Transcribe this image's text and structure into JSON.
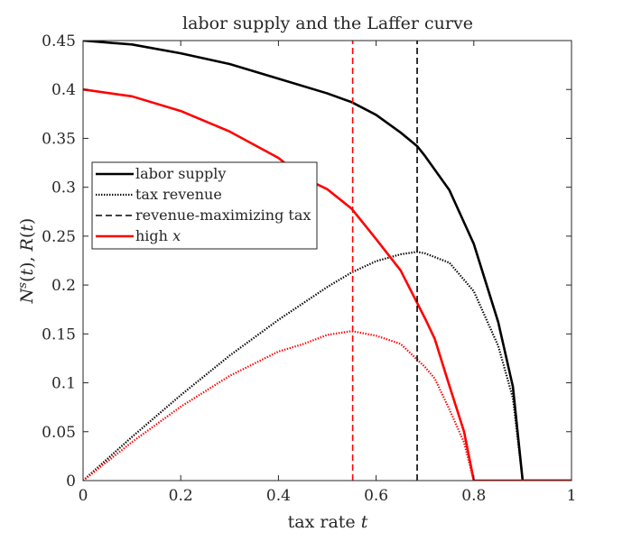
{
  "chart_data": {
    "type": "line",
    "title": "labor supply and the Laffer curve",
    "xlabel": "tax rate t",
    "ylabel": "N^s(t), R(t)",
    "xlim": [
      0,
      1
    ],
    "ylim": [
      0,
      0.45
    ],
    "xticks": [
      "0",
      "0.2",
      "0.4",
      "0.6",
      "0.8",
      "1"
    ],
    "yticks": [
      "0",
      "0.05",
      "0.1",
      "0.15",
      "0.2",
      "0.25",
      "0.3",
      "0.35",
      "0.4",
      "0.45"
    ],
    "grid": false,
    "legend_position": "middle-left",
    "legend": [
      {
        "label": "labor supply",
        "style": "solid",
        "color": "#000000"
      },
      {
        "label": "tax revenue",
        "style": "dotted",
        "color": "#000000"
      },
      {
        "label": "revenue-maximizing tax",
        "style": "dashed",
        "color": "#000000"
      },
      {
        "label": "high x",
        "style": "solid",
        "color": "#ff0000"
      }
    ],
    "series": [
      {
        "color": "#000000",
        "style": "solid",
        "x": [
          0,
          0.1,
          0.2,
          0.3,
          0.4,
          0.5,
          0.55,
          0.6,
          0.65,
          0.684,
          0.7,
          0.75,
          0.8,
          0.85,
          0.88,
          0.9,
          0.95,
          1.0
        ],
        "y": [
          0.45,
          0.446,
          0.437,
          0.426,
          0.411,
          0.396,
          0.387,
          0.374,
          0.356,
          0.342,
          0.332,
          0.297,
          0.242,
          0.162,
          0.096,
          0.0,
          0.0,
          0.0
        ]
      },
      {
        "color": "#000000",
        "style": "dotted",
        "x": [
          0,
          0.1,
          0.2,
          0.3,
          0.4,
          0.5,
          0.55,
          0.6,
          0.65,
          0.684,
          0.7,
          0.75,
          0.8,
          0.85,
          0.88,
          0.9,
          0.95,
          1.0
        ],
        "y": [
          0.0,
          0.0446,
          0.0874,
          0.1278,
          0.1644,
          0.198,
          0.2129,
          0.2244,
          0.2314,
          0.2339,
          0.2324,
          0.2228,
          0.1936,
          0.1377,
          0.0845,
          0.0,
          0.0,
          0.0
        ]
      },
      {
        "color": "#ff0000",
        "style": "solid",
        "x": [
          0,
          0.1,
          0.2,
          0.3,
          0.4,
          0.45,
          0.5,
          0.55,
          0.6,
          0.65,
          0.7,
          0.72,
          0.75,
          0.78,
          0.8,
          0.85,
          0.9,
          0.95,
          1.0
        ],
        "y": [
          0.4,
          0.393,
          0.378,
          0.357,
          0.33,
          0.31,
          0.298,
          0.278,
          0.247,
          0.215,
          0.166,
          0.145,
          0.097,
          0.05,
          0.0,
          0.0,
          0.0,
          0.0,
          0.0
        ]
      },
      {
        "color": "#ff0000",
        "style": "dotted",
        "x": [
          0,
          0.1,
          0.2,
          0.3,
          0.4,
          0.45,
          0.5,
          0.55,
          0.6,
          0.65,
          0.7,
          0.72,
          0.75,
          0.78,
          0.8,
          0.85,
          0.9,
          0.95,
          1.0
        ],
        "y": [
          0.0,
          0.0393,
          0.0756,
          0.1071,
          0.132,
          0.1395,
          0.149,
          0.1529,
          0.1482,
          0.1398,
          0.1162,
          0.1044,
          0.0728,
          0.039,
          0.0,
          0.0,
          0.0,
          0.0,
          0.0
        ]
      },
      {
        "color": "#ff0000",
        "style": "dashed",
        "x": [
          0.552,
          0.552
        ],
        "y": [
          0,
          0.45
        ]
      },
      {
        "color": "#000000",
        "style": "dashed",
        "x": [
          0.684,
          0.684
        ],
        "y": [
          0,
          0.45
        ]
      }
    ]
  }
}
